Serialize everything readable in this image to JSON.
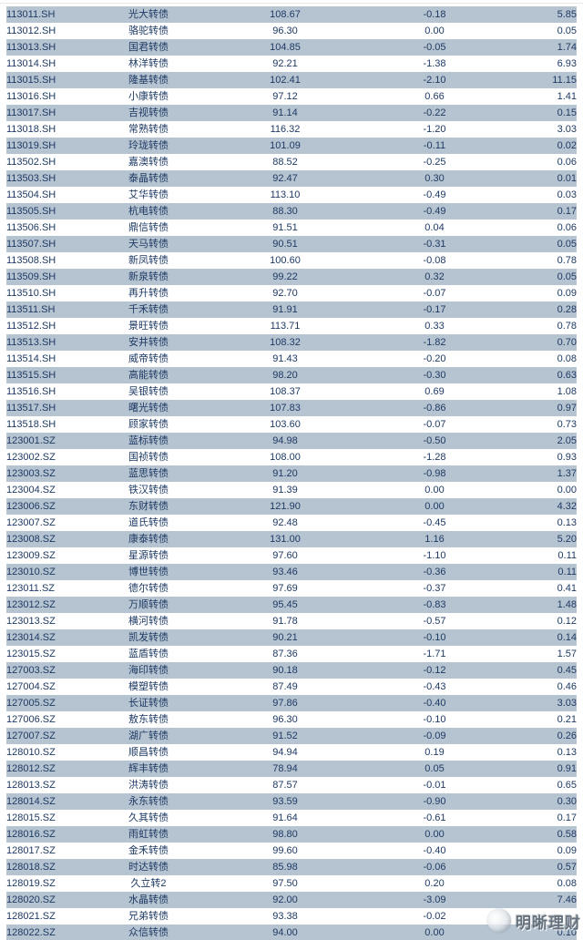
{
  "colors": {
    "row_highlight": "#b6c4d1",
    "row_plain": "#ffffff",
    "text": "#1e3a64",
    "background": "#ffffff"
  },
  "watermark": {
    "text": "明晰理财",
    "logo": "round-blurred-logo"
  },
  "table": {
    "rows": [
      {
        "code": "113011.SH",
        "name": "光大转债",
        "price": "108.67",
        "change": "-0.18",
        "value": "5.85"
      },
      {
        "code": "113012.SH",
        "name": "骆驼转债",
        "price": "96.30",
        "change": "0.00",
        "value": "0.05"
      },
      {
        "code": "113013.SH",
        "name": "国君转债",
        "price": "104.85",
        "change": "-0.05",
        "value": "1.74"
      },
      {
        "code": "113014.SH",
        "name": "林洋转债",
        "price": "92.21",
        "change": "-1.38",
        "value": "6.93"
      },
      {
        "code": "113015.SH",
        "name": "隆基转债",
        "price": "102.41",
        "change": "-2.10",
        "value": "11.15"
      },
      {
        "code": "113016.SH",
        "name": "小康转债",
        "price": "97.12",
        "change": "0.66",
        "value": "1.41"
      },
      {
        "code": "113017.SH",
        "name": "吉视转债",
        "price": "91.14",
        "change": "-0.22",
        "value": "0.15"
      },
      {
        "code": "113018.SH",
        "name": "常熟转债",
        "price": "116.32",
        "change": "-1.20",
        "value": "3.03"
      },
      {
        "code": "113019.SH",
        "name": "玲珑转债",
        "price": "101.09",
        "change": "-0.11",
        "value": "0.02"
      },
      {
        "code": "113502.SH",
        "name": "嘉澳转债",
        "price": "88.52",
        "change": "-0.25",
        "value": "0.06"
      },
      {
        "code": "113503.SH",
        "name": "泰晶转债",
        "price": "92.47",
        "change": "0.30",
        "value": "0.01"
      },
      {
        "code": "113504.SH",
        "name": "艾华转债",
        "price": "113.10",
        "change": "-0.49",
        "value": "0.03"
      },
      {
        "code": "113505.SH",
        "name": "杭电转债",
        "price": "88.30",
        "change": "-0.49",
        "value": "0.17"
      },
      {
        "code": "113506.SH",
        "name": "鼎信转债",
        "price": "91.51",
        "change": "0.04",
        "value": "0.06"
      },
      {
        "code": "113507.SH",
        "name": "天马转债",
        "price": "90.51",
        "change": "-0.31",
        "value": "0.05"
      },
      {
        "code": "113508.SH",
        "name": "新凤转债",
        "price": "100.60",
        "change": "-0.08",
        "value": "0.78"
      },
      {
        "code": "113509.SH",
        "name": "新泉转债",
        "price": "99.22",
        "change": "0.32",
        "value": "0.05"
      },
      {
        "code": "113510.SH",
        "name": "再升转债",
        "price": "92.70",
        "change": "-0.07",
        "value": "0.09"
      },
      {
        "code": "113511.SH",
        "name": "千禾转债",
        "price": "91.91",
        "change": "-0.17",
        "value": "0.28"
      },
      {
        "code": "113512.SH",
        "name": "景旺转债",
        "price": "113.71",
        "change": "0.33",
        "value": "0.78"
      },
      {
        "code": "113513.SH",
        "name": "安井转债",
        "price": "108.32",
        "change": "-1.82",
        "value": "0.70"
      },
      {
        "code": "113514.SH",
        "name": "威帝转债",
        "price": "91.43",
        "change": "-0.20",
        "value": "0.08"
      },
      {
        "code": "113515.SH",
        "name": "高能转债",
        "price": "98.20",
        "change": "-0.30",
        "value": "0.63"
      },
      {
        "code": "113516.SH",
        "name": "吴银转债",
        "price": "108.37",
        "change": "0.69",
        "value": "1.08"
      },
      {
        "code": "113517.SH",
        "name": "曙光转债",
        "price": "107.83",
        "change": "-0.86",
        "value": "0.97"
      },
      {
        "code": "113518.SH",
        "name": "顾家转债",
        "price": "103.60",
        "change": "-0.07",
        "value": "0.73"
      },
      {
        "code": "123001.SZ",
        "name": "蓝标转债",
        "price": "94.98",
        "change": "-0.50",
        "value": "2.05"
      },
      {
        "code": "123002.SZ",
        "name": "国祯转债",
        "price": "108.00",
        "change": "-1.28",
        "value": "0.93"
      },
      {
        "code": "123003.SZ",
        "name": "蓝思转债",
        "price": "91.20",
        "change": "-0.98",
        "value": "1.37"
      },
      {
        "code": "123004.SZ",
        "name": "铁汉转债",
        "price": "91.39",
        "change": "0.00",
        "value": "0.00"
      },
      {
        "code": "123006.SZ",
        "name": "东财转债",
        "price": "121.90",
        "change": "0.00",
        "value": "4.32"
      },
      {
        "code": "123007.SZ",
        "name": "道氏转债",
        "price": "92.48",
        "change": "-0.45",
        "value": "0.13"
      },
      {
        "code": "123008.SZ",
        "name": "康泰转债",
        "price": "131.00",
        "change": "1.16",
        "value": "5.20"
      },
      {
        "code": "123009.SZ",
        "name": "星源转债",
        "price": "97.60",
        "change": "-1.10",
        "value": "0.11"
      },
      {
        "code": "123010.SZ",
        "name": "博世转债",
        "price": "93.46",
        "change": "-0.36",
        "value": "0.11"
      },
      {
        "code": "123011.SZ",
        "name": "德尔转债",
        "price": "97.69",
        "change": "-0.37",
        "value": "0.41"
      },
      {
        "code": "123012.SZ",
        "name": "万顺转债",
        "price": "95.45",
        "change": "-0.83",
        "value": "1.48"
      },
      {
        "code": "123013.SZ",
        "name": "横河转债",
        "price": "91.78",
        "change": "-0.57",
        "value": "0.12"
      },
      {
        "code": "123014.SZ",
        "name": "凯发转债",
        "price": "90.21",
        "change": "-0.10",
        "value": "0.14"
      },
      {
        "code": "123015.SZ",
        "name": "蓝盾转债",
        "price": "87.36",
        "change": "-1.71",
        "value": "1.57"
      },
      {
        "code": "127003.SZ",
        "name": "海印转债",
        "price": "90.18",
        "change": "-0.12",
        "value": "0.45"
      },
      {
        "code": "127004.SZ",
        "name": "模塑转债",
        "price": "87.49",
        "change": "-0.43",
        "value": "0.46"
      },
      {
        "code": "127005.SZ",
        "name": "长证转债",
        "price": "97.86",
        "change": "-0.40",
        "value": "3.03"
      },
      {
        "code": "127006.SZ",
        "name": "敖东转债",
        "price": "96.30",
        "change": "-0.10",
        "value": "0.21"
      },
      {
        "code": "127007.SZ",
        "name": "湖广转债",
        "price": "91.52",
        "change": "-0.09",
        "value": "0.26"
      },
      {
        "code": "128010.SZ",
        "name": "顺昌转债",
        "price": "94.94",
        "change": "0.19",
        "value": "0.13"
      },
      {
        "code": "128012.SZ",
        "name": "辉丰转债",
        "price": "78.94",
        "change": "0.05",
        "value": "0.91"
      },
      {
        "code": "128013.SZ",
        "name": "洪涛转债",
        "price": "87.57",
        "change": "-0.01",
        "value": "0.65"
      },
      {
        "code": "128014.SZ",
        "name": "永东转债",
        "price": "93.59",
        "change": "-0.90",
        "value": "0.30"
      },
      {
        "code": "128015.SZ",
        "name": "久其转债",
        "price": "91.64",
        "change": "-0.61",
        "value": "0.17"
      },
      {
        "code": "128016.SZ",
        "name": "雨虹转债",
        "price": "98.80",
        "change": "0.00",
        "value": "0.58"
      },
      {
        "code": "128017.SZ",
        "name": "金禾转债",
        "price": "99.60",
        "change": "-0.40",
        "value": "0.09"
      },
      {
        "code": "128018.SZ",
        "name": "时达转债",
        "price": "85.98",
        "change": "-0.06",
        "value": "0.57"
      },
      {
        "code": "128019.SZ",
        "name": "久立转2",
        "price": "97.50",
        "change": "0.20",
        "value": "0.08"
      },
      {
        "code": "128020.SZ",
        "name": "水晶转债",
        "price": "92.00",
        "change": "-3.09",
        "value": "7.46"
      },
      {
        "code": "128021.SZ",
        "name": "兄弟转债",
        "price": "93.38",
        "change": "-0.02",
        "value": ""
      },
      {
        "code": "128022.SZ",
        "name": "众信转债",
        "price": "94.00",
        "change": "0.00",
        "value": "0.10"
      }
    ]
  }
}
